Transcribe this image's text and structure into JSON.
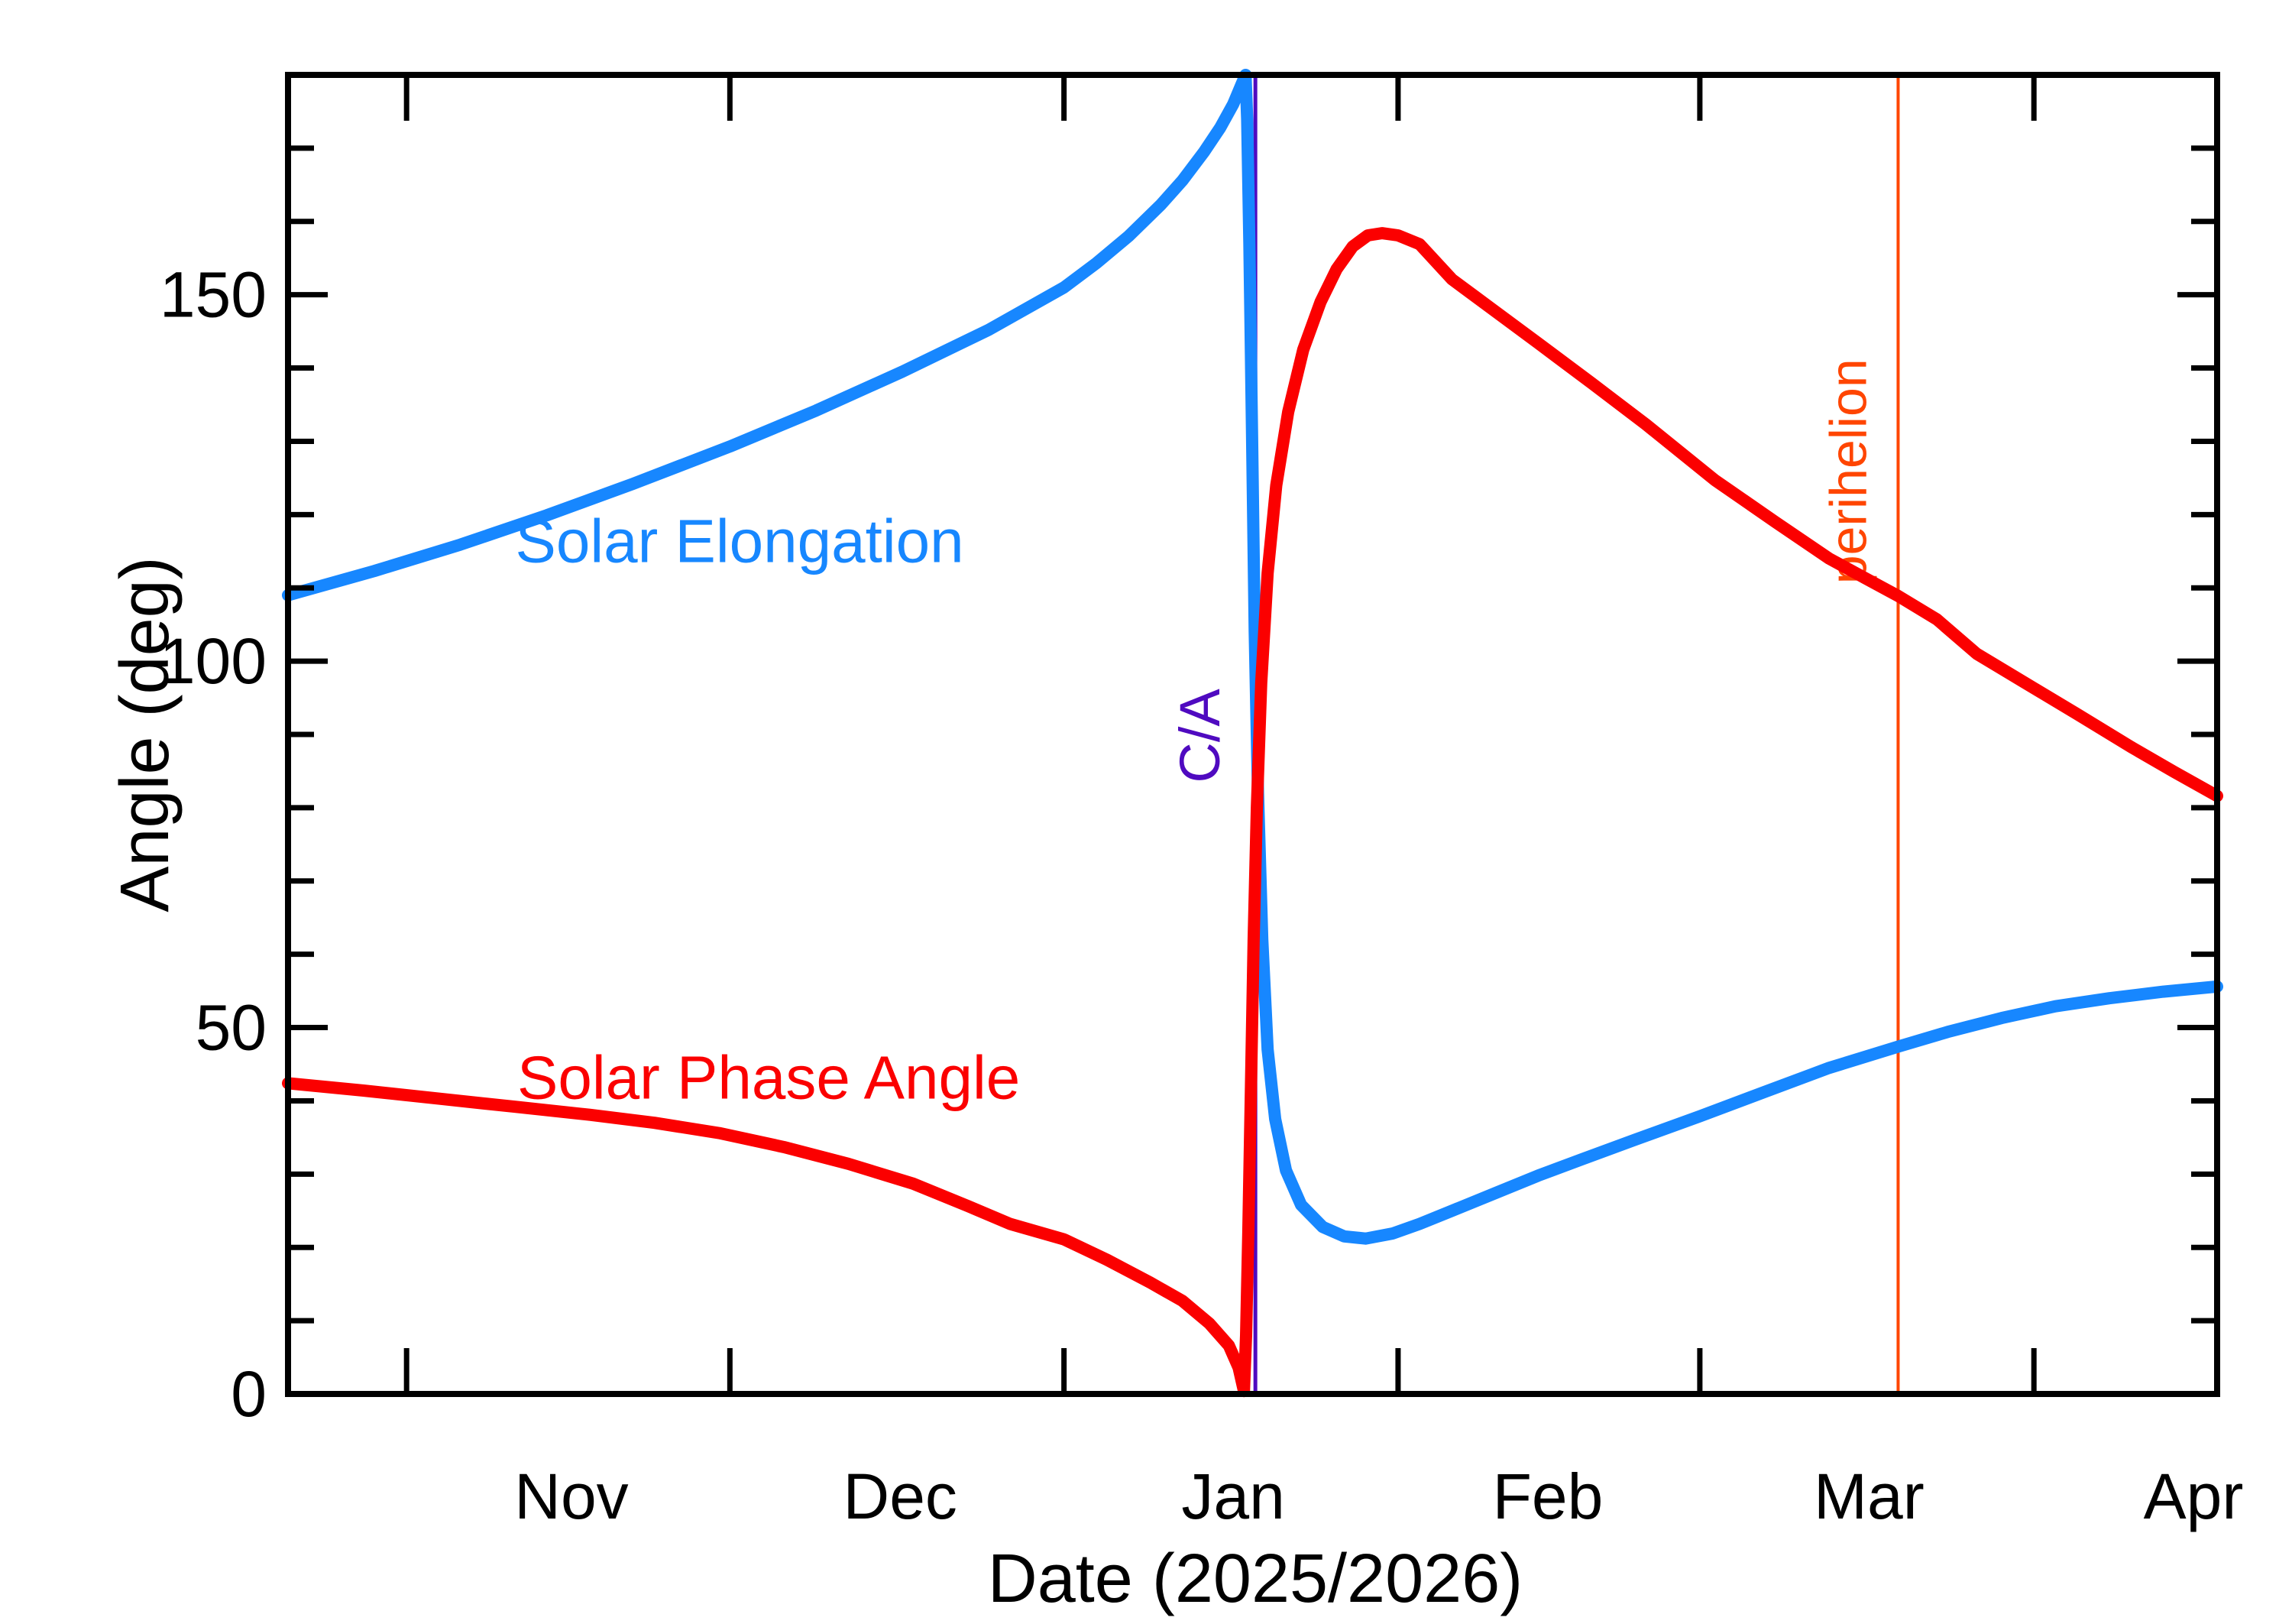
{
  "figure": {
    "background": "#ffffff",
    "axis_color": "#000000"
  },
  "chart_data": {
    "type": "line",
    "title": "",
    "xlabel": "Date (2025/2026)",
    "ylabel": "Angle (deg)",
    "x_unit": "days since left edge (≈ 21 Oct 2025), right edge ≈ 18 Apr 2026",
    "x_range_days": [
      0,
      179
    ],
    "ylim": [
      0,
      180
    ],
    "grid": false,
    "legend_position": "labels drawn on plot",
    "y_major_ticks": [
      0,
      50,
      100,
      150
    ],
    "y_minor_tick_step": 10,
    "x_month_ticks": [
      {
        "label": "Nov",
        "start_day": 11,
        "mid_day": 26.3
      },
      {
        "label": "Dec",
        "start_day": 41,
        "mid_day": 56.8
      },
      {
        "label": "Jan",
        "start_day": 72,
        "mid_day": 87.7
      },
      {
        "label": "Feb",
        "start_day": 103,
        "mid_day": 116.9
      },
      {
        "label": "Mar",
        "start_day": 131,
        "mid_day": 146.7
      },
      {
        "label": "Apr",
        "start_day": 162,
        "mid_day": 176.8
      }
    ],
    "series": [
      {
        "name": "Solar Elongation",
        "color": "#1787FF",
        "line_width": 16,
        "label_pos": {
          "day": 41.9,
          "deg": 116.4
        },
        "points": [
          [
            0,
            109
          ],
          [
            8,
            112.3
          ],
          [
            16,
            115.9
          ],
          [
            24,
            119.9
          ],
          [
            32,
            124.2
          ],
          [
            41,
            129.3
          ],
          [
            49,
            134.2
          ],
          [
            57,
            139.5
          ],
          [
            65,
            145.2
          ],
          [
            72,
            151
          ],
          [
            75,
            154.3
          ],
          [
            78,
            158
          ],
          [
            81,
            162.3
          ],
          [
            83,
            165.6
          ],
          [
            85,
            169.5
          ],
          [
            86.5,
            172.8
          ],
          [
            87.7,
            176
          ],
          [
            88.5,
            178.8
          ],
          [
            88.85,
            180
          ],
          [
            89.0,
            174
          ],
          [
            89.2,
            157
          ],
          [
            89.45,
            131
          ],
          [
            89.7,
            104
          ],
          [
            90,
            82
          ],
          [
            90.4,
            62
          ],
          [
            90.9,
            47
          ],
          [
            91.6,
            37.5
          ],
          [
            92.6,
            30.5
          ],
          [
            94,
            25.8
          ],
          [
            96,
            22.8
          ],
          [
            98,
            21.5
          ],
          [
            100,
            21.2
          ],
          [
            102.5,
            21.9
          ],
          [
            105,
            23.2
          ],
          [
            108,
            25
          ],
          [
            112,
            27.4
          ],
          [
            116,
            29.8
          ],
          [
            120,
            32
          ],
          [
            125,
            34.7
          ],
          [
            131,
            37.9
          ],
          [
            137,
            41.2
          ],
          [
            143,
            44.5
          ],
          [
            149.4,
            47.4
          ],
          [
            154,
            49.4
          ],
          [
            159,
            51.3
          ],
          [
            164,
            52.9
          ],
          [
            169,
            54
          ],
          [
            174,
            54.9
          ],
          [
            179,
            55.6
          ]
        ]
      },
      {
        "name": "Solar Phase Angle",
        "color": "#FB0000",
        "line_width": 16,
        "label_pos": {
          "day": 44.6,
          "deg": 43.2
        },
        "points": [
          [
            0,
            42.4
          ],
          [
            7,
            41.4
          ],
          [
            14,
            40.3
          ],
          [
            21,
            39.2
          ],
          [
            28,
            38.1
          ],
          [
            34,
            37
          ],
          [
            40,
            35.6
          ],
          [
            46,
            33.7
          ],
          [
            52,
            31.4
          ],
          [
            58,
            28.7
          ],
          [
            63,
            25.7
          ],
          [
            67,
            23.2
          ],
          [
            72,
            21.1
          ],
          [
            76,
            18.3
          ],
          [
            80,
            15.2
          ],
          [
            83,
            12.7
          ],
          [
            85.5,
            9.6
          ],
          [
            87.3,
            6.6
          ],
          [
            88.2,
            3.6
          ],
          [
            88.7,
            0.4
          ],
          [
            88.9,
            8
          ],
          [
            89.1,
            22
          ],
          [
            89.35,
            42
          ],
          [
            89.6,
            62
          ],
          [
            89.9,
            80
          ],
          [
            90.3,
            97
          ],
          [
            90.9,
            112
          ],
          [
            91.7,
            124
          ],
          [
            92.8,
            134
          ],
          [
            94.2,
            142.5
          ],
          [
            95.8,
            149
          ],
          [
            97.3,
            153.5
          ],
          [
            98.8,
            156.6
          ],
          [
            100.2,
            158.1
          ],
          [
            101.5,
            158.4
          ],
          [
            103,
            158.1
          ],
          [
            105,
            156.9
          ],
          [
            108,
            152.1
          ],
          [
            111.5,
            148.3
          ],
          [
            116,
            143.4
          ],
          [
            121,
            137.9
          ],
          [
            126,
            132.3
          ],
          [
            132.4,
            124.7
          ],
          [
            138,
            119
          ],
          [
            143,
            114
          ],
          [
            146,
            111.6
          ],
          [
            149.4,
            108.9
          ],
          [
            153,
            105.7
          ],
          [
            156.7,
            101
          ],
          [
            161,
            97.2
          ],
          [
            166,
            92.8
          ],
          [
            171,
            88.3
          ],
          [
            175,
            84.9
          ],
          [
            179,
            81.6
          ]
        ]
      }
    ],
    "event_lines": [
      {
        "name": "C/A",
        "day": 89.76,
        "color": "#4F0AC0",
        "line_width": 5,
        "label_pos": {
          "day": 84.6,
          "deg": 89.8
        },
        "label_rotation": -90
      },
      {
        "name": "perihelion",
        "day": 149.4,
        "color": "#FF4500",
        "line_width": 4,
        "label_pos": {
          "day": 144.8,
          "deg": 125.9
        },
        "label_rotation": -90
      }
    ]
  }
}
